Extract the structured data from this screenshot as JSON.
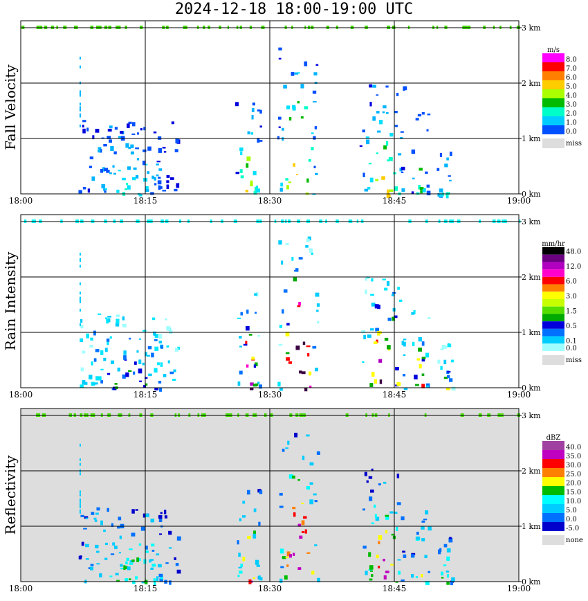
{
  "title": "2024-12-18   18:00-19:00 UTC",
  "x_ticks": [
    "18:00",
    "18:15",
    "18:30",
    "18:45",
    "19:00"
  ],
  "y_ticks": [
    "0 km",
    "1 km",
    "2 km",
    "3 km"
  ],
  "chart_data": [
    {
      "type": "heatmap",
      "title": "Fall Velocity",
      "xlabel": "",
      "ylabel": "",
      "xlim": [
        "18:00",
        "19:00"
      ],
      "ylim_km": [
        0,
        3
      ],
      "legend": {
        "unit": "m/s",
        "position": "right",
        "levels": [
          {
            "label": "8.0",
            "color": "#ff00ff"
          },
          {
            "label": "7.0",
            "color": "#ff0000"
          },
          {
            "label": "6.0",
            "color": "#ff8000"
          },
          {
            "label": "5.0",
            "color": "#ffcc00"
          },
          {
            "label": "4.0",
            "color": "#aaff00"
          },
          {
            "label": "3.0",
            "color": "#00bb00"
          },
          {
            "label": "2.0",
            "color": "#00ffc8"
          },
          {
            "label": "1.0",
            "color": "#00ccff"
          },
          {
            "label": "0.0",
            "color": "#0050ff"
          },
          {
            "label": "miss",
            "color": "#dddddd"
          }
        ]
      },
      "background": "#ffffff",
      "echo_palette": [
        "#0000dd",
        "#0050ff",
        "#00b4ff",
        "#00e0ff",
        "#00ffc8",
        "#00bb00",
        "#aaff00",
        "#ffcc00"
      ]
    },
    {
      "type": "heatmap",
      "title": "Rain Intensity",
      "xlabel": "",
      "ylabel": "",
      "xlim": [
        "18:00",
        "19:00"
      ],
      "ylim_km": [
        0,
        3
      ],
      "legend": {
        "unit": "mm/hr",
        "position": "right",
        "levels": [
          {
            "label": "48.0",
            "color": "#000000"
          },
          {
            "label": "",
            "color": "#6a0080"
          },
          {
            "label": "12.0",
            "color": "#b000c0"
          },
          {
            "label": "",
            "color": "#ff00cc"
          },
          {
            "label": "6.0",
            "color": "#ff0000"
          },
          {
            "label": "",
            "color": "#ff8000"
          },
          {
            "label": "3.0",
            "color": "#ffff00"
          },
          {
            "label": "",
            "color": "#c8ff00"
          },
          {
            "label": "1.5",
            "color": "#55dd00"
          },
          {
            "label": "",
            "color": "#00aa00"
          },
          {
            "label": "0.5",
            "color": "#0000dd"
          },
          {
            "label": "",
            "color": "#0070ff"
          },
          {
            "label": "0.1",
            "color": "#00ccff"
          },
          {
            "label": "0.0",
            "color": "#a0ffff"
          },
          {
            "label": "miss",
            "color": "#dddddd"
          }
        ]
      },
      "background": "#ffffff",
      "echo_palette": [
        "#a0ffff",
        "#00e8ff",
        "#00ccff",
        "#0070ff",
        "#0000dd",
        "#00aa00",
        "#ffff00",
        "#ff0000",
        "#ff00cc",
        "#b000c0",
        "#3a0040"
      ]
    },
    {
      "type": "heatmap",
      "title": "Reflectivity",
      "xlabel": "",
      "ylabel": "",
      "xlim": [
        "18:00",
        "19:00"
      ],
      "ylim_km": [
        0,
        3
      ],
      "legend": {
        "unit": "dBZ",
        "position": "right",
        "levels": [
          {
            "label": "40.0",
            "color": "#a040a0"
          },
          {
            "label": "35.0",
            "color": "#c000c0"
          },
          {
            "label": "30.0",
            "color": "#ff0000"
          },
          {
            "label": "25.0",
            "color": "#ff8000"
          },
          {
            "label": "20.0",
            "color": "#ffff00"
          },
          {
            "label": "15.0",
            "color": "#00bb00"
          },
          {
            "label": "10.0",
            "color": "#00ffff"
          },
          {
            "label": "5.0",
            "color": "#00ccff"
          },
          {
            "label": "0.0",
            "color": "#0070ff"
          },
          {
            "label": "-5.0",
            "color": "#0000cc"
          },
          {
            "label": "none",
            "color": "#dddddd"
          }
        ]
      },
      "background": "#dddddd",
      "echo_palette": [
        "#0000cc",
        "#0070ff",
        "#00ccff",
        "#00ffff",
        "#00bb00",
        "#ffff00",
        "#ff8000",
        "#ff0000",
        "#c000c0"
      ]
    }
  ]
}
